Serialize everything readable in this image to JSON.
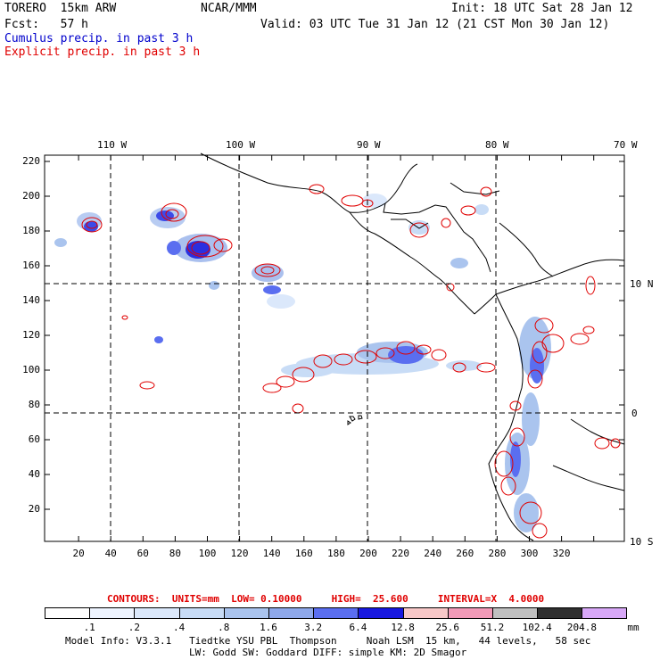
{
  "header": {
    "model": "TORERO  15km ARW",
    "org": "NCAR/MMM",
    "init": "Init: 18 UTC Sat 28 Jan 12",
    "fcst": "Fcst:   57 h",
    "valid": "Valid: 03 UTC Tue 31 Jan 12 (21 CST Mon 30 Jan 12)",
    "field1": "Cumulus precip. in past 3 h",
    "field2": "Explicit precip. in past 3 h"
  },
  "axes": {
    "lon_labels": [
      "110 W",
      "100 W",
      "90 W",
      "80 W",
      "70 W"
    ],
    "lat_labels": [
      "10 N",
      "0",
      "10 S"
    ],
    "x_ticks": [
      "20",
      "40",
      "60",
      "80",
      "100",
      "120",
      "140",
      "160",
      "180",
      "200",
      "220",
      "240",
      "260",
      "280",
      "300",
      "320"
    ],
    "y_ticks": [
      "220",
      "200",
      "180",
      "160",
      "140",
      "120",
      "100",
      "80",
      "60",
      "40",
      "20"
    ]
  },
  "contours": {
    "text": "CONTOURS:  UNITS=mm  LOW= 0.10000     HIGH=  25.600     INTERVAL=X  4.0000"
  },
  "colorbar": {
    "labels": [
      ".1",
      ".2",
      ".4",
      ".8",
      "1.6",
      "3.2",
      "6.4",
      "12.8",
      "25.6",
      "51.2",
      "102.4",
      "204.8",
      "mm"
    ],
    "colors": [
      "#ffffff",
      "#eef4ff",
      "#dbe8fb",
      "#c8dcf6",
      "#aac4ee",
      "#8ea8ea",
      "#5a6ef0",
      "#1818e0",
      "#f8c8c8",
      "#f29ab8",
      "#c0c0c0",
      "#303030",
      "#d8a8f8"
    ]
  },
  "footer": {
    "line1": "Model Info: V3.3.1   Tiedtke YSU PBL  Thompson     Noah LSM  15 km,   44 levels,   58 sec",
    "line2": "LW: Godd SW: Goddard DIFF: simple KM: 2D Smagor"
  }
}
